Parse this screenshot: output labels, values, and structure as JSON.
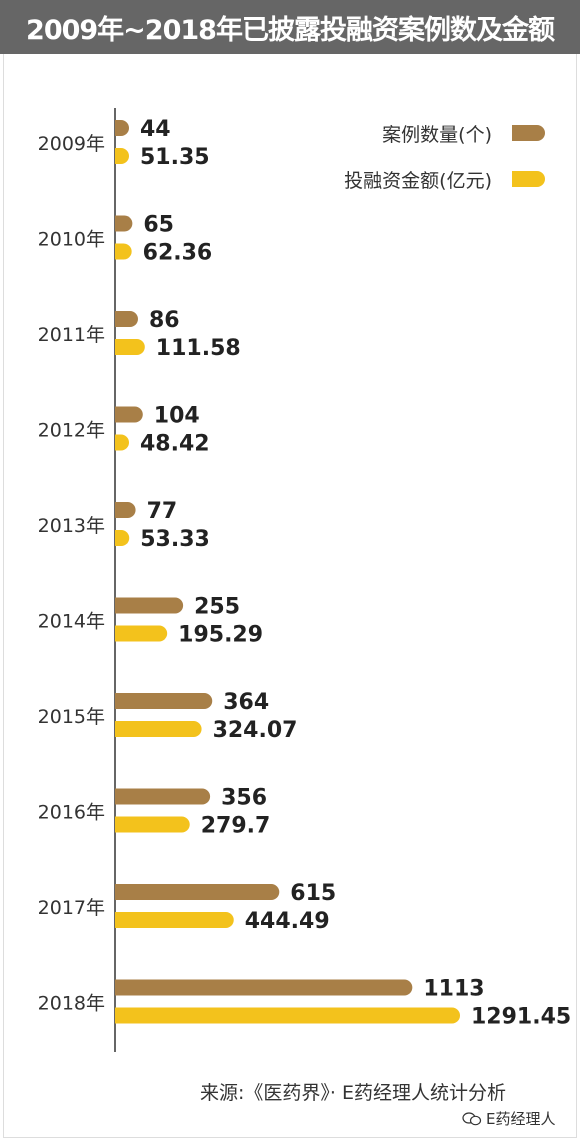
{
  "title": "2009年~2018年已披露投融资案例数及金额",
  "source": "来源:《医药界》· E药经理人统计分析",
  "watermark": "E药经理人",
  "colors": {
    "count": "#a87f47",
    "amount": "#f3c21c",
    "title_bg": "#666666",
    "axis": "#666666"
  },
  "chart_data": {
    "type": "bar",
    "orientation": "horizontal",
    "title": "2009年~2018年已披露投融资案例数及金额",
    "categories": [
      "2009年",
      "2010年",
      "2011年",
      "2012年",
      "2013年",
      "2014年",
      "2015年",
      "2016年",
      "2017年",
      "2018年"
    ],
    "series": [
      {
        "name": "案例数量(个)",
        "values": [
          44,
          65,
          86,
          104,
          77,
          255,
          364,
          356,
          615,
          1113
        ],
        "labels": [
          "44",
          "65",
          "86",
          "104",
          "77",
          "255",
          "364",
          "356",
          "615",
          "1113"
        ]
      },
      {
        "name": "投融资金额(亿元)",
        "values": [
          51.35,
          62.36,
          111.58,
          48.42,
          53.33,
          195.29,
          324.07,
          279.7,
          444.49,
          1291.45
        ],
        "labels": [
          "51.35",
          "62.36",
          "111.58",
          "48.42",
          "53.33",
          "195.29",
          "324.07",
          "279.7",
          "444.49",
          "1291.45"
        ]
      }
    ],
    "xlim": [
      0,
      1291.45
    ],
    "grid": false,
    "legend_position": "top-right"
  }
}
